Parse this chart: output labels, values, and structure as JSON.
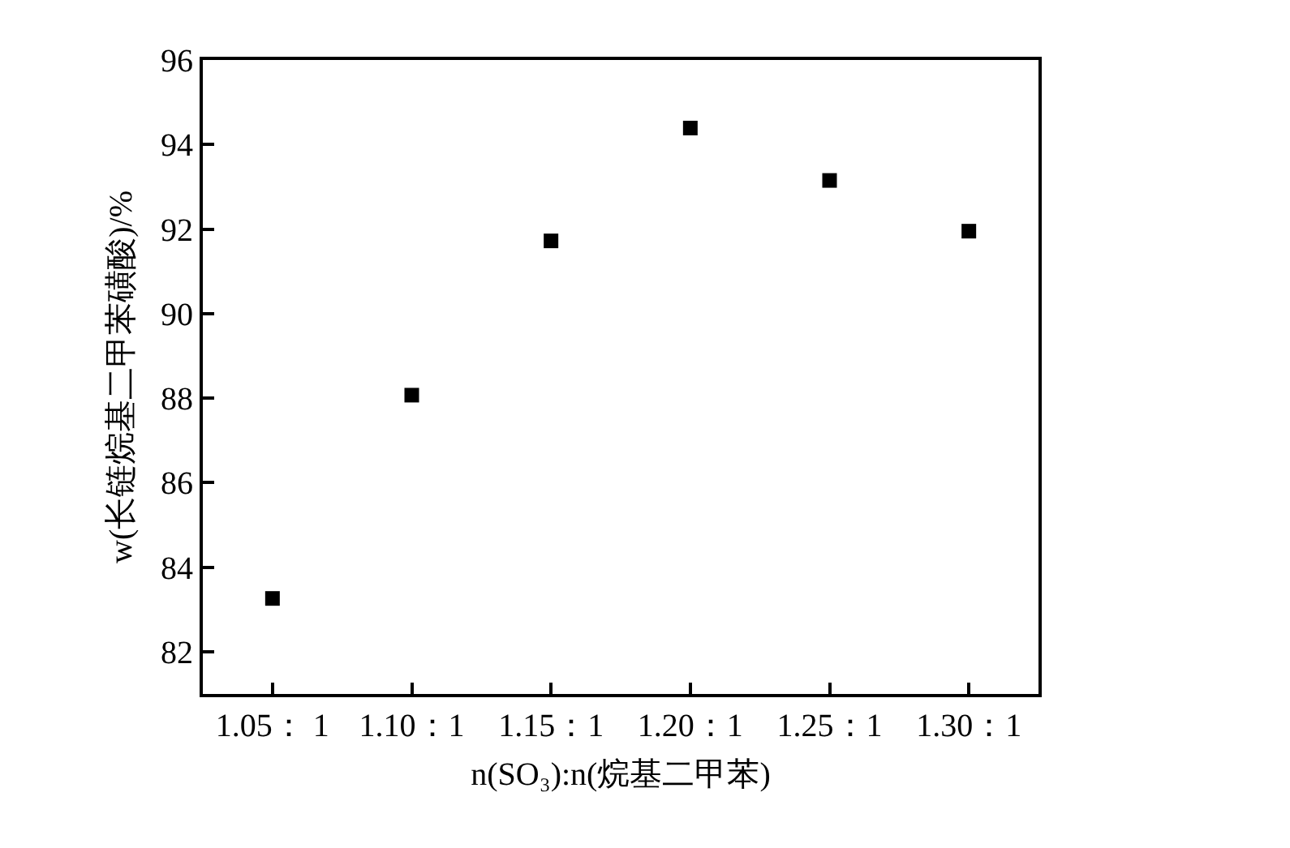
{
  "chart_data": {
    "type": "scatter",
    "categories": [
      "1.05： 1",
      "1.10：1",
      "1.15：1",
      "1.20：1",
      "1.25：1",
      "1.30：1"
    ],
    "values": [
      83.26,
      88.07,
      91.72,
      94.39,
      93.15,
      91.95
    ],
    "color": "#000000",
    "xlabel": "n(SO₃):n(烷基二甲苯)",
    "ylabel": "w(长链烷基二甲苯磺酸)/%",
    "ylim": [
      81,
      96
    ],
    "yticks": [
      82,
      84,
      86,
      88,
      90,
      92,
      94,
      96
    ],
    "marker": "square",
    "grid": false
  }
}
